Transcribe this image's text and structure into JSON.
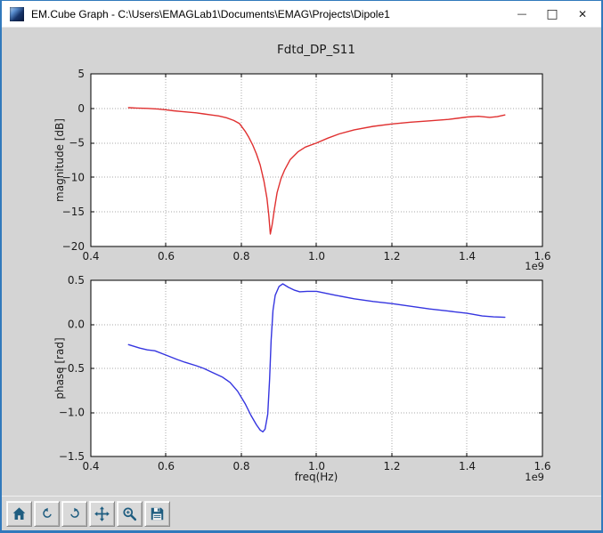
{
  "window": {
    "title": "EM.Cube Graph - C:\\Users\\EMAGLab1\\Documents\\EMAG\\Projects\\Dipole1",
    "controls": [
      {
        "name": "minimize",
        "glyph": "—"
      },
      {
        "name": "maximize",
        "glyph": "□"
      },
      {
        "name": "close",
        "glyph": "✕"
      }
    ]
  },
  "colors": {
    "window_border": "#3179bc",
    "canvas_bg": "#d4d4d4",
    "plot_bg": "#ffffff",
    "axis": "#000000",
    "grid": "#aaaaaa",
    "text": "#1a1a1a",
    "magnitude_line": "#e03030",
    "phase_line": "#3535e0",
    "toolbar_icon": "#1f5d80"
  },
  "toolbar": {
    "buttons": [
      {
        "name": "home",
        "icon": "home-icon"
      },
      {
        "name": "back",
        "icon": "back-arrow-icon"
      },
      {
        "name": "forward",
        "icon": "forward-arrow-icon"
      },
      {
        "name": "pan",
        "icon": "pan-arrows-icon"
      },
      {
        "name": "zoom-to-rect",
        "icon": "zoom-magnifier-icon"
      },
      {
        "name": "save",
        "icon": "save-floppy-icon"
      }
    ],
    "icon_color": "#1f5d80"
  },
  "chart_data": [
    {
      "type": "line",
      "name": "magnitude",
      "title": "Fdtd_DP_S11",
      "ylabel": "magnitude [dB]",
      "xlabel": "",
      "x_offset_label": "1e9",
      "xlim": [
        0.4,
        1.6
      ],
      "ylim": [
        -20,
        5
      ],
      "grid": true,
      "xtick_values": [
        0.4,
        0.6,
        0.8,
        1.0,
        1.2,
        1.4,
        1.6
      ],
      "xtick_labels": [
        "0.4",
        "0.6",
        "0.8",
        "1.0",
        "1.2",
        "1.4",
        "1.6"
      ],
      "ytick_values": [
        5,
        0,
        -5,
        -10,
        -15,
        -20
      ],
      "ytick_labels": [
        "5",
        "0",
        "−5",
        "−10",
        "−15",
        "−20"
      ],
      "series": [
        {
          "name": "magnitude",
          "color": "#e03030",
          "points": [
            [
              0.5,
              0.1
            ],
            [
              0.52,
              0.05
            ],
            [
              0.55,
              0.0
            ],
            [
              0.58,
              -0.1
            ],
            [
              0.6,
              -0.2
            ],
            [
              0.62,
              -0.35
            ],
            [
              0.64,
              -0.45
            ],
            [
              0.66,
              -0.55
            ],
            [
              0.68,
              -0.65
            ],
            [
              0.7,
              -0.8
            ],
            [
              0.72,
              -0.95
            ],
            [
              0.74,
              -1.1
            ],
            [
              0.76,
              -1.35
            ],
            [
              0.78,
              -1.75
            ],
            [
              0.795,
              -2.2
            ],
            [
              0.81,
              -3.3
            ],
            [
              0.82,
              -4.2
            ],
            [
              0.83,
              -5.3
            ],
            [
              0.84,
              -6.6
            ],
            [
              0.85,
              -8.2
            ],
            [
              0.86,
              -10.5
            ],
            [
              0.868,
              -13.0
            ],
            [
              0.873,
              -15.5
            ],
            [
              0.877,
              -18.2
            ],
            [
              0.882,
              -16.8
            ],
            [
              0.888,
              -14.5
            ],
            [
              0.895,
              -12.2
            ],
            [
              0.905,
              -10.2
            ],
            [
              0.915,
              -8.9
            ],
            [
              0.93,
              -7.4
            ],
            [
              0.95,
              -6.3
            ],
            [
              0.97,
              -5.6
            ],
            [
              1.0,
              -5.0
            ],
            [
              1.03,
              -4.3
            ],
            [
              1.06,
              -3.7
            ],
            [
              1.1,
              -3.1
            ],
            [
              1.15,
              -2.6
            ],
            [
              1.2,
              -2.25
            ],
            [
              1.25,
              -2.0
            ],
            [
              1.3,
              -1.8
            ],
            [
              1.35,
              -1.6
            ],
            [
              1.4,
              -1.25
            ],
            [
              1.43,
              -1.15
            ],
            [
              1.46,
              -1.3
            ],
            [
              1.48,
              -1.2
            ],
            [
              1.5,
              -0.95
            ]
          ]
        }
      ]
    },
    {
      "type": "line",
      "name": "phase",
      "title": "",
      "ylabel": "phase [rad]",
      "xlabel": "freq(Hz)",
      "x_offset_label": "1e9",
      "xlim": [
        0.4,
        1.6
      ],
      "ylim": [
        -1.5,
        0.5
      ],
      "grid": true,
      "xtick_values": [
        0.4,
        0.6,
        0.8,
        1.0,
        1.2,
        1.4,
        1.6
      ],
      "xtick_labels": [
        "0.4",
        "0.6",
        "0.8",
        "1.0",
        "1.2",
        "1.4",
        "1.6"
      ],
      "ytick_values": [
        0.5,
        0.0,
        -0.5,
        -1.0,
        -1.5
      ],
      "ytick_labels": [
        "0.5",
        "0.0",
        "−0.5",
        "−1.0",
        "−1.5"
      ],
      "series": [
        {
          "name": "phase",
          "color": "#3535e0",
          "points": [
            [
              0.5,
              -0.23
            ],
            [
              0.53,
              -0.27
            ],
            [
              0.55,
              -0.29
            ],
            [
              0.57,
              -0.3
            ],
            [
              0.6,
              -0.35
            ],
            [
              0.63,
              -0.4
            ],
            [
              0.65,
              -0.43
            ],
            [
              0.68,
              -0.47
            ],
            [
              0.7,
              -0.5
            ],
            [
              0.72,
              -0.54
            ],
            [
              0.75,
              -0.6
            ],
            [
              0.77,
              -0.66
            ],
            [
              0.79,
              -0.76
            ],
            [
              0.81,
              -0.9
            ],
            [
              0.825,
              -1.03
            ],
            [
              0.84,
              -1.14
            ],
            [
              0.85,
              -1.2
            ],
            [
              0.857,
              -1.22
            ],
            [
              0.863,
              -1.19
            ],
            [
              0.87,
              -1.02
            ],
            [
              0.875,
              -0.62
            ],
            [
              0.879,
              -0.18
            ],
            [
              0.884,
              0.16
            ],
            [
              0.89,
              0.33
            ],
            [
              0.9,
              0.43
            ],
            [
              0.91,
              0.46
            ],
            [
              0.925,
              0.42
            ],
            [
              0.94,
              0.39
            ],
            [
              0.955,
              0.37
            ],
            [
              0.975,
              0.375
            ],
            [
              1.0,
              0.375
            ],
            [
              1.05,
              0.33
            ],
            [
              1.1,
              0.29
            ],
            [
              1.15,
              0.26
            ],
            [
              1.2,
              0.235
            ],
            [
              1.25,
              0.205
            ],
            [
              1.3,
              0.175
            ],
            [
              1.35,
              0.15
            ],
            [
              1.4,
              0.125
            ],
            [
              1.44,
              0.095
            ],
            [
              1.47,
              0.085
            ],
            [
              1.5,
              0.08
            ]
          ]
        }
      ]
    }
  ]
}
